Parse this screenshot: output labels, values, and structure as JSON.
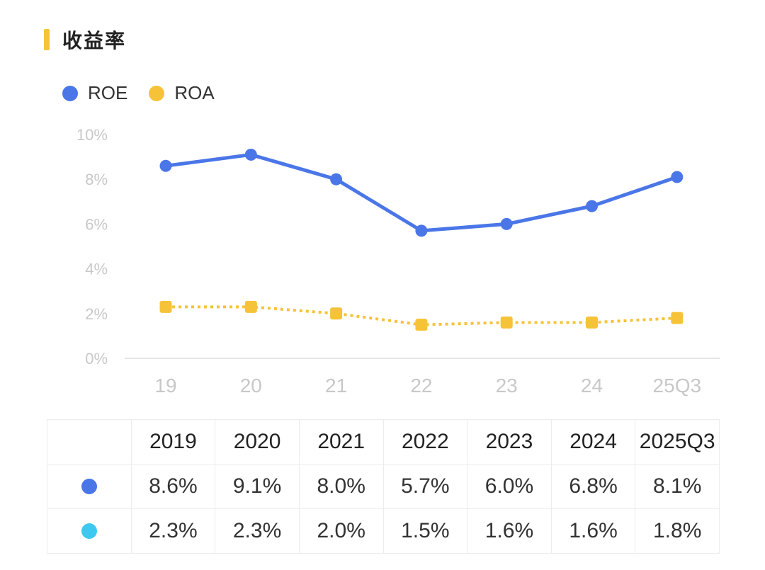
{
  "header": {
    "title": "收益率"
  },
  "colors": {
    "accent": "#F6C338",
    "roe": "#4A76E8",
    "roa": "#F6C338",
    "table_roa_dot": "#3DC8F0"
  },
  "chart_data": {
    "type": "line",
    "categories": [
      "19",
      "20",
      "21",
      "22",
      "23",
      "24",
      "25Q3"
    ],
    "yticks": [
      "0%",
      "2%",
      "4%",
      "6%",
      "8%",
      "10%"
    ],
    "ylim": [
      0,
      10
    ],
    "legend_position": "top-left",
    "series": [
      {
        "name": "ROE",
        "values": [
          8.6,
          9.1,
          8.0,
          5.7,
          6.0,
          6.8,
          8.1
        ],
        "color": "#4A76E8",
        "marker": "circle",
        "line": "solid"
      },
      {
        "name": "ROA",
        "values": [
          2.3,
          2.3,
          2.0,
          1.5,
          1.6,
          1.6,
          1.8
        ],
        "color": "#F6C338",
        "marker": "square",
        "line": "dotted"
      }
    ]
  },
  "table": {
    "headers": [
      "2019",
      "2020",
      "2021",
      "2022",
      "2023",
      "2024",
      "2025Q3"
    ],
    "rows": [
      {
        "dot_color": "#4A76E8",
        "values": [
          "8.6%",
          "9.1%",
          "8.0%",
          "5.7%",
          "6.0%",
          "6.8%",
          "8.1%"
        ]
      },
      {
        "dot_color": "#3DC8F0",
        "values": [
          "2.3%",
          "2.3%",
          "2.0%",
          "1.5%",
          "1.6%",
          "1.6%",
          "1.8%"
        ]
      }
    ]
  }
}
